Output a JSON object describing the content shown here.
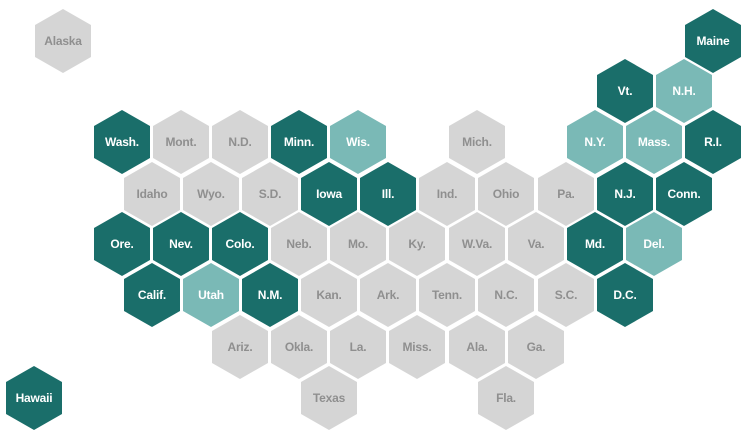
{
  "colors": {
    "dark": "#1a6e6a",
    "light": "#7ab9b6",
    "none": "#d5d5d5"
  },
  "states": [
    {
      "label": "Alaska",
      "category": "none"
    },
    {
      "label": "Maine",
      "category": "dark"
    },
    {
      "label": "Vt.",
      "category": "dark"
    },
    {
      "label": "N.H.",
      "category": "light"
    },
    {
      "label": "Wash.",
      "category": "dark"
    },
    {
      "label": "Mont.",
      "category": "none"
    },
    {
      "label": "N.D.",
      "category": "none"
    },
    {
      "label": "Minn.",
      "category": "dark"
    },
    {
      "label": "Wis.",
      "category": "light"
    },
    {
      "label": "Mich.",
      "category": "none"
    },
    {
      "label": "N.Y.",
      "category": "light"
    },
    {
      "label": "Mass.",
      "category": "light"
    },
    {
      "label": "R.I.",
      "category": "dark"
    },
    {
      "label": "Idaho",
      "category": "none"
    },
    {
      "label": "Wyo.",
      "category": "none"
    },
    {
      "label": "S.D.",
      "category": "none"
    },
    {
      "label": "Iowa",
      "category": "dark"
    },
    {
      "label": "Ill.",
      "category": "dark"
    },
    {
      "label": "Ind.",
      "category": "none"
    },
    {
      "label": "Ohio",
      "category": "none"
    },
    {
      "label": "Pa.",
      "category": "none"
    },
    {
      "label": "N.J.",
      "category": "dark"
    },
    {
      "label": "Conn.",
      "category": "dark"
    },
    {
      "label": "Ore.",
      "category": "dark"
    },
    {
      "label": "Nev.",
      "category": "dark"
    },
    {
      "label": "Colo.",
      "category": "dark"
    },
    {
      "label": "Neb.",
      "category": "none"
    },
    {
      "label": "Mo.",
      "category": "none"
    },
    {
      "label": "Ky.",
      "category": "none"
    },
    {
      "label": "W.Va.",
      "category": "none"
    },
    {
      "label": "Va.",
      "category": "none"
    },
    {
      "label": "Md.",
      "category": "dark"
    },
    {
      "label": "Del.",
      "category": "light"
    },
    {
      "label": "Calif.",
      "category": "dark"
    },
    {
      "label": "Utah",
      "category": "light"
    },
    {
      "label": "N.M.",
      "category": "dark"
    },
    {
      "label": "Kan.",
      "category": "none"
    },
    {
      "label": "Ark.",
      "category": "none"
    },
    {
      "label": "Tenn.",
      "category": "none"
    },
    {
      "label": "N.C.",
      "category": "none"
    },
    {
      "label": "S.C.",
      "category": "none"
    },
    {
      "label": "D.C.",
      "category": "dark"
    },
    {
      "label": "Ariz.",
      "category": "none"
    },
    {
      "label": "Okla.",
      "category": "none"
    },
    {
      "label": "La.",
      "category": "none"
    },
    {
      "label": "Miss.",
      "category": "none"
    },
    {
      "label": "Ala.",
      "category": "none"
    },
    {
      "label": "Ga.",
      "category": "none"
    },
    {
      "label": "Hawaii",
      "category": "dark"
    },
    {
      "label": "Texas",
      "category": "none"
    },
    {
      "label": "Fla.",
      "category": "none"
    }
  ]
}
